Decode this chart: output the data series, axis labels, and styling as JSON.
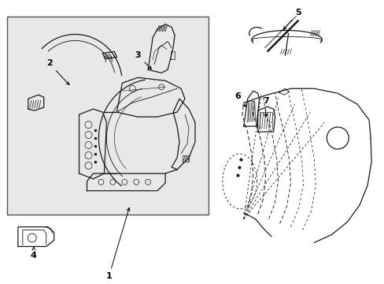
{
  "bg_color": "#ffffff",
  "box_bg": "#e8e8e8",
  "box_border": "#333333",
  "line_color": "#1a1a1a",
  "dashed_color": "#1a1a1a"
}
